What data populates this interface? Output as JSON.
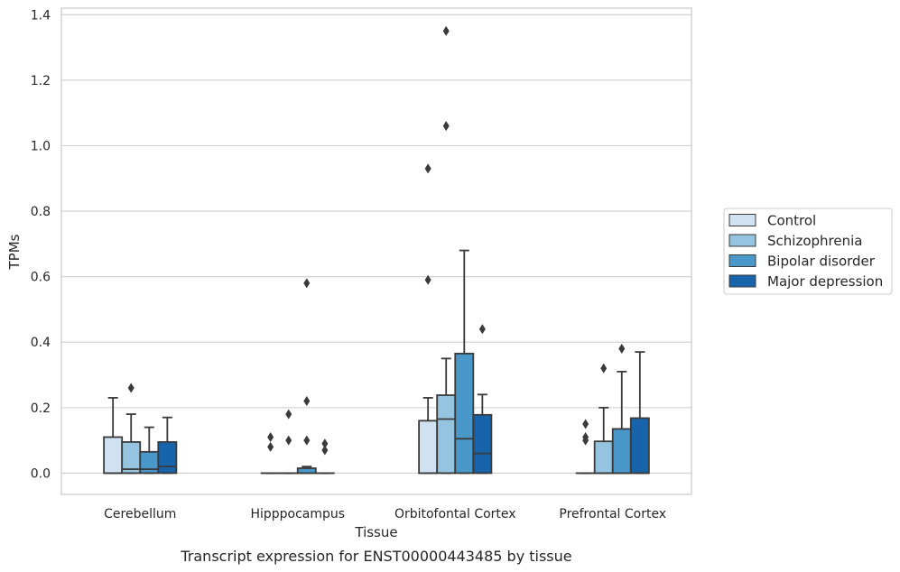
{
  "caption": "Transcript expression for ENST00000443485 by tissue",
  "chart_data": {
    "type": "boxplot",
    "xlabel": "Tissue",
    "ylabel": "TPMs",
    "ylim": [
      -0.065,
      1.42
    ],
    "yticks": [
      "0.0",
      "0.2",
      "0.4",
      "0.6",
      "0.8",
      "1.0",
      "1.2",
      "1.4"
    ],
    "grid": "horizontal",
    "legend_position": "right",
    "categories": [
      "Cerebellum",
      "Hipppocampus",
      "Orbitofontal Cortex",
      "Prefrontal Cortex"
    ],
    "series": [
      {
        "name": "Control",
        "color": "#d0e1f2",
        "boxes": [
          {
            "q1": 0.0,
            "median": 0.0,
            "q3": 0.11,
            "whisker_low": 0.0,
            "whisker_high": 0.23,
            "outliers": []
          },
          {
            "q1": 0.0,
            "median": 0.0,
            "q3": 0.0,
            "whisker_low": 0.0,
            "whisker_high": 0.0,
            "outliers": [
              0.08,
              0.11
            ]
          },
          {
            "q1": 0.0,
            "median": 0.0,
            "q3": 0.16,
            "whisker_low": 0.0,
            "whisker_high": 0.23,
            "outliers": [
              0.59,
              0.93
            ]
          },
          {
            "q1": 0.0,
            "median": 0.0,
            "q3": 0.0,
            "whisker_low": 0.0,
            "whisker_high": 0.0,
            "outliers": [
              0.1,
              0.11,
              0.15
            ]
          }
        ]
      },
      {
        "name": "Schizophrenia",
        "color": "#94c4df",
        "boxes": [
          {
            "q1": 0.0,
            "median": 0.012,
            "q3": 0.095,
            "whisker_low": 0.0,
            "whisker_high": 0.18,
            "outliers": [
              0.26
            ]
          },
          {
            "q1": 0.0,
            "median": 0.0,
            "q3": 0.0,
            "whisker_low": 0.0,
            "whisker_high": 0.0,
            "outliers": [
              0.1,
              0.18
            ]
          },
          {
            "q1": 0.0,
            "median": 0.165,
            "q3": 0.238,
            "whisker_low": 0.0,
            "whisker_high": 0.35,
            "outliers": [
              1.06,
              1.35
            ]
          },
          {
            "q1": 0.0,
            "median": 0.0,
            "q3": 0.097,
            "whisker_low": 0.0,
            "whisker_high": 0.2,
            "outliers": [
              0.32
            ]
          }
        ]
      },
      {
        "name": "Bipolar disorder",
        "color": "#4a98c9",
        "boxes": [
          {
            "q1": 0.0,
            "median": 0.012,
            "q3": 0.065,
            "whisker_low": 0.0,
            "whisker_high": 0.14,
            "outliers": []
          },
          {
            "q1": 0.0,
            "median": 0.0,
            "q3": 0.015,
            "whisker_low": 0.0,
            "whisker_high": 0.02,
            "outliers": [
              0.1,
              0.22,
              0.58
            ]
          },
          {
            "q1": 0.0,
            "median": 0.105,
            "q3": 0.365,
            "whisker_low": 0.0,
            "whisker_high": 0.68,
            "outliers": []
          },
          {
            "q1": 0.0,
            "median": 0.0,
            "q3": 0.135,
            "whisker_low": 0.0,
            "whisker_high": 0.31,
            "outliers": [
              0.38
            ]
          }
        ]
      },
      {
        "name": "Major depression",
        "color": "#1764ab",
        "boxes": [
          {
            "q1": 0.0,
            "median": 0.02,
            "q3": 0.095,
            "whisker_low": 0.0,
            "whisker_high": 0.17,
            "outliers": []
          },
          {
            "q1": 0.0,
            "median": 0.0,
            "q3": 0.0,
            "whisker_low": 0.0,
            "whisker_high": 0.0,
            "outliers": [
              0.07,
              0.09
            ]
          },
          {
            "q1": 0.0,
            "median": 0.06,
            "q3": 0.178,
            "whisker_low": 0.0,
            "whisker_high": 0.24,
            "outliers": [
              0.44
            ]
          },
          {
            "q1": 0.0,
            "median": 0.0,
            "q3": 0.168,
            "whisker_low": 0.0,
            "whisker_high": 0.37,
            "outliers": []
          }
        ]
      }
    ]
  }
}
